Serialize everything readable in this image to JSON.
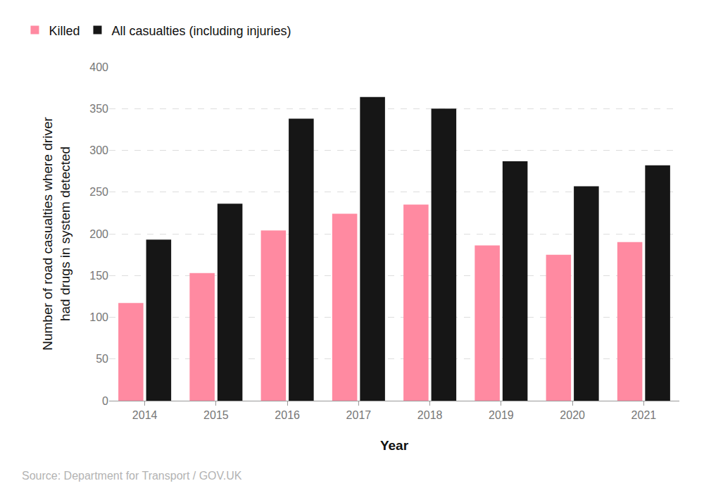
{
  "chart_data": {
    "type": "bar",
    "categories": [
      "2014",
      "2015",
      "2016",
      "2017",
      "2018",
      "2019",
      "2020",
      "2021"
    ],
    "series": [
      {
        "name": "Killed",
        "color": "#ff8aa1",
        "values": [
          117,
          153,
          204,
          224,
          235,
          186,
          175,
          190
        ]
      },
      {
        "name": "All casualties (including injuries)",
        "color": "#161616",
        "values": [
          193,
          236,
          338,
          364,
          350,
          287,
          257,
          282
        ]
      }
    ],
    "x_label": "Year",
    "y_label": "Number of road casualties where driver had drugs in system detected",
    "ylim": [
      0,
      400
    ],
    "yticks": [
      0,
      50,
      100,
      150,
      200,
      250,
      300,
      350,
      400
    ],
    "grid": true,
    "legend": "top-left",
    "annotations": [
      "Source: Department for Transport / GOV.UK"
    ]
  }
}
